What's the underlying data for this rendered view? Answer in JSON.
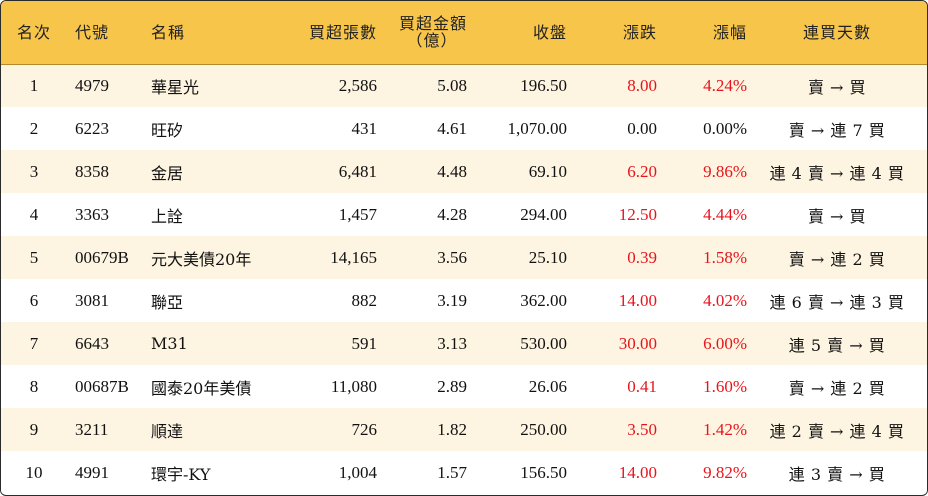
{
  "headers": {
    "rank": "名次",
    "code": "代號",
    "name": "名稱",
    "buy_lots": "買超張數",
    "buy_amount_line1": "買超金額",
    "buy_amount_line2": "（億）",
    "close": "收盤",
    "change": "漲跌",
    "change_pct": "漲幅",
    "consecutive_days": "連買天數"
  },
  "rows": [
    {
      "rank": "1",
      "code": "4979",
      "name": "華星光",
      "buy_lots": "2,586",
      "buy_amount": "5.08",
      "close": "196.50",
      "change": "8.00",
      "change_pct": "4.24%",
      "days": "賣 → 買"
    },
    {
      "rank": "2",
      "code": "6223",
      "name": "旺矽",
      "buy_lots": "431",
      "buy_amount": "4.61",
      "close": "1,070.00",
      "change": "0.00",
      "change_pct": "0.00%",
      "days": "賣 → 連 7 買"
    },
    {
      "rank": "3",
      "code": "8358",
      "name": "金居",
      "buy_lots": "6,481",
      "buy_amount": "4.48",
      "close": "69.10",
      "change": "6.20",
      "change_pct": "9.86%",
      "days": "連 4 賣 → 連 4 買"
    },
    {
      "rank": "4",
      "code": "3363",
      "name": "上詮",
      "buy_lots": "1,457",
      "buy_amount": "4.28",
      "close": "294.00",
      "change": "12.50",
      "change_pct": "4.44%",
      "days": "賣 → 買"
    },
    {
      "rank": "5",
      "code": "00679B",
      "name": "元大美債20年",
      "buy_lots": "14,165",
      "buy_amount": "3.56",
      "close": "25.10",
      "change": "0.39",
      "change_pct": "1.58%",
      "days": "賣 → 連 2 買"
    },
    {
      "rank": "6",
      "code": "3081",
      "name": "聯亞",
      "buy_lots": "882",
      "buy_amount": "3.19",
      "close": "362.00",
      "change": "14.00",
      "change_pct": "4.02%",
      "days": "連 6 賣 → 連 3 買"
    },
    {
      "rank": "7",
      "code": "6643",
      "name": "M31",
      "buy_lots": "591",
      "buy_amount": "3.13",
      "close": "530.00",
      "change": "30.00",
      "change_pct": "6.00%",
      "days": "連 5 賣 → 買"
    },
    {
      "rank": "8",
      "code": "00687B",
      "name": "國泰20年美債",
      "buy_lots": "11,080",
      "buy_amount": "2.89",
      "close": "26.06",
      "change": "0.41",
      "change_pct": "1.60%",
      "days": "賣 → 連 2 買"
    },
    {
      "rank": "9",
      "code": "3211",
      "name": "順達",
      "buy_lots": "726",
      "buy_amount": "1.82",
      "close": "250.00",
      "change": "3.50",
      "change_pct": "1.42%",
      "days": "連 2 賣 → 連 4 買"
    },
    {
      "rank": "10",
      "code": "4991",
      "name": "環宇-KY",
      "buy_lots": "1,004",
      "buy_amount": "1.57",
      "close": "156.50",
      "change": "14.00",
      "change_pct": "9.82%",
      "days": "連 3 賣 → 買"
    }
  ],
  "colors": {
    "header_bg": "#f8c54b",
    "stripe_bg": "#fdf4e1",
    "positive": "#e8141b",
    "neutral": "#111111"
  }
}
